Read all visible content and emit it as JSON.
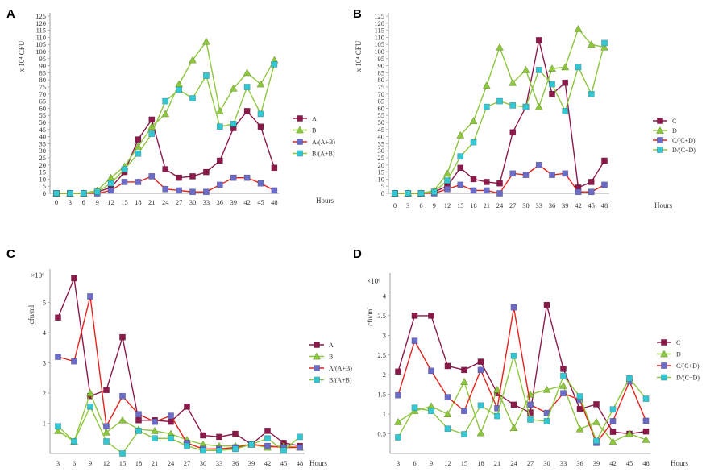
{
  "chart_data": [
    {
      "type": "line",
      "panel": "A",
      "ylabel": "x 10⁴ CFU",
      "xlabel": "Hours",
      "ylim": [
        0,
        125
      ],
      "yticks": [
        0,
        5,
        10,
        15,
        20,
        25,
        30,
        35,
        40,
        45,
        50,
        55,
        60,
        65,
        70,
        75,
        80,
        85,
        90,
        95,
        100,
        105,
        110,
        115,
        120,
        125
      ],
      "categories": [
        "0",
        "3",
        "6",
        "9",
        "12",
        "15",
        "18",
        "21",
        "24",
        "27",
        "30",
        "33",
        "36",
        "39",
        "42",
        "45",
        "48"
      ],
      "series": [
        {
          "name": "A",
          "color": "#8b1a4a",
          "marker": "square",
          "values": [
            0,
            0,
            0,
            1,
            4,
            15,
            38,
            52,
            17,
            11,
            12,
            15,
            23,
            46,
            58,
            47,
            18
          ]
        },
        {
          "name": "B",
          "color": "#8dc63f",
          "marker": "triangle",
          "values": [
            0,
            0,
            0,
            2,
            11,
            19,
            33,
            47,
            56,
            77,
            94,
            107,
            58,
            74,
            85,
            77,
            94
          ]
        },
        {
          "name": "A/(A+B)",
          "color": "#e8211c",
          "marker": "square",
          "markerColor": "#6b6bc8",
          "values": [
            0,
            0,
            0,
            0,
            2,
            8,
            8,
            12,
            3,
            2,
            1,
            1,
            6,
            11,
            11,
            7,
            2
          ]
        },
        {
          "name": "B/(A+B)",
          "color": "#8dc63f",
          "marker": "square",
          "markerColor": "#33c7d4",
          "values": [
            0,
            0,
            0,
            1,
            7,
            17,
            28,
            42,
            65,
            73,
            67,
            83,
            47,
            49,
            75,
            56,
            91
          ]
        }
      ]
    },
    {
      "type": "line",
      "panel": "B",
      "ylabel": "x 10⁴ CFU",
      "xlabel": "Hours",
      "ylim": [
        0,
        125
      ],
      "yticks": [
        0,
        5,
        10,
        15,
        20,
        25,
        30,
        35,
        40,
        45,
        50,
        55,
        60,
        65,
        70,
        75,
        80,
        85,
        90,
        95,
        100,
        105,
        110,
        115,
        120,
        125
      ],
      "categories": [
        "0",
        "3",
        "6",
        "9",
        "12",
        "15",
        "18",
        "21",
        "24",
        "27",
        "30",
        "33",
        "36",
        "39",
        "42",
        "45",
        "48"
      ],
      "series": [
        {
          "name": "C",
          "color": "#8b1a4a",
          "marker": "square",
          "values": [
            0,
            0,
            0,
            1,
            5,
            18,
            10,
            8,
            7,
            43,
            61,
            108,
            70,
            78,
            4,
            8,
            23
          ]
        },
        {
          "name": "D",
          "color": "#8dc63f",
          "marker": "triangle",
          "values": [
            0,
            0,
            0,
            2,
            14,
            41,
            51,
            76,
            103,
            78,
            87,
            61,
            88,
            89,
            116,
            105,
            103
          ]
        },
        {
          "name": "C/(C+D)",
          "color": "#e8211c",
          "marker": "square",
          "markerColor": "#6b6bc8",
          "values": [
            0,
            0,
            0,
            0,
            3,
            6,
            2,
            2,
            0,
            14,
            13,
            20,
            13,
            14,
            1,
            1,
            6
          ]
        },
        {
          "name": "D/(C+D)",
          "color": "#8dc63f",
          "marker": "square",
          "markerColor": "#33c7d4",
          "values": [
            0,
            0,
            0,
            1,
            9,
            26,
            36,
            61,
            65,
            62,
            61,
            87,
            77,
            58,
            89,
            70,
            106
          ]
        }
      ]
    },
    {
      "type": "line",
      "panel": "C",
      "ylabel": "cfu/ml",
      "yexp": "×10⁶",
      "xlabel": "Hours",
      "ylim": [
        0,
        6
      ],
      "yticks": [
        1,
        2,
        3,
        4,
        5
      ],
      "categories": [
        "3",
        "6",
        "9",
        "12",
        "15",
        "18",
        "21",
        "24",
        "27",
        "30",
        "33",
        "36",
        "39",
        "42",
        "45",
        "48"
      ],
      "series": [
        {
          "name": "A",
          "color": "#8b1a4a",
          "marker": "square",
          "values": [
            4.5,
            5.8,
            1.9,
            2.1,
            3.85,
            1.1,
            1.1,
            1.05,
            1.55,
            0.6,
            0.55,
            0.65,
            0.3,
            0.75,
            0.35,
            0.25
          ]
        },
        {
          "name": "B",
          "color": "#8dc63f",
          "marker": "triangle",
          "values": [
            0.75,
            0.4,
            2.0,
            0.7,
            1.1,
            0.8,
            0.75,
            0.65,
            0.45,
            0.3,
            0.25,
            0.25,
            0.3,
            0.2,
            0.25,
            0.2
          ]
        },
        {
          "name": "A/(A+B)",
          "color": "#e8211c",
          "marker": "square",
          "markerColor": "#6b6bc8",
          "values": [
            3.2,
            3.05,
            5.2,
            0.9,
            1.9,
            1.3,
            1.05,
            1.25,
            0.35,
            0.15,
            0.15,
            0.2,
            0.3,
            0.25,
            0.2,
            0.2
          ]
        },
        {
          "name": "B/(A+B)",
          "color": "#8dc63f",
          "marker": "square",
          "markerColor": "#33c7d4",
          "values": [
            0.9,
            0.4,
            1.55,
            0.4,
            0.0,
            0.75,
            0.5,
            0.5,
            0.25,
            0.1,
            0.1,
            0.15,
            0.3,
            0.5,
            0.1,
            0.55
          ]
        }
      ]
    },
    {
      "type": "line",
      "panel": "D",
      "ylabel": "cfu/ml",
      "yexp": "×10⁶",
      "xlabel": "Hours",
      "ylim": [
        0,
        4.5
      ],
      "yticks": [
        0.5,
        1,
        1.5,
        2,
        2.5,
        3,
        3.5,
        4
      ],
      "categories": [
        "3",
        "6",
        "9",
        "12",
        "15",
        "18",
        "21",
        "24",
        "27",
        "30",
        "33",
        "36",
        "39",
        "42",
        "45",
        "48"
      ],
      "series": [
        {
          "name": "C",
          "color": "#8b1a4a",
          "marker": "square",
          "values": [
            2.08,
            3.5,
            3.5,
            2.22,
            2.12,
            2.33,
            1.53,
            1.24,
            1.04,
            3.77,
            2.15,
            1.13,
            1.25,
            0.55,
            0.5,
            0.56
          ]
        },
        {
          "name": "D",
          "color": "#8dc63f",
          "marker": "triangle",
          "values": [
            0.8,
            1.08,
            1.2,
            1.0,
            1.82,
            0.52,
            1.62,
            0.65,
            1.5,
            1.62,
            1.72,
            0.62,
            0.8,
            0.3,
            0.5,
            0.35
          ]
        },
        {
          "name": "C/(C+D)",
          "color": "#e8211c",
          "marker": "square",
          "markerColor": "#6b6bc8",
          "values": [
            1.48,
            2.86,
            2.1,
            1.43,
            1.08,
            2.12,
            1.15,
            3.71,
            1.24,
            1.03,
            1.53,
            1.36,
            0.27,
            0.82,
            1.83,
            0.83
          ]
        },
        {
          "name": "D/(C+D)",
          "color": "#8dc63f",
          "marker": "square",
          "markerColor": "#33c7d4",
          "values": [
            0.41,
            1.16,
            1.08,
            0.63,
            0.49,
            1.22,
            0.95,
            2.48,
            0.86,
            0.82,
            1.97,
            1.45,
            0.32,
            1.12,
            1.91,
            1.39
          ]
        }
      ]
    }
  ]
}
